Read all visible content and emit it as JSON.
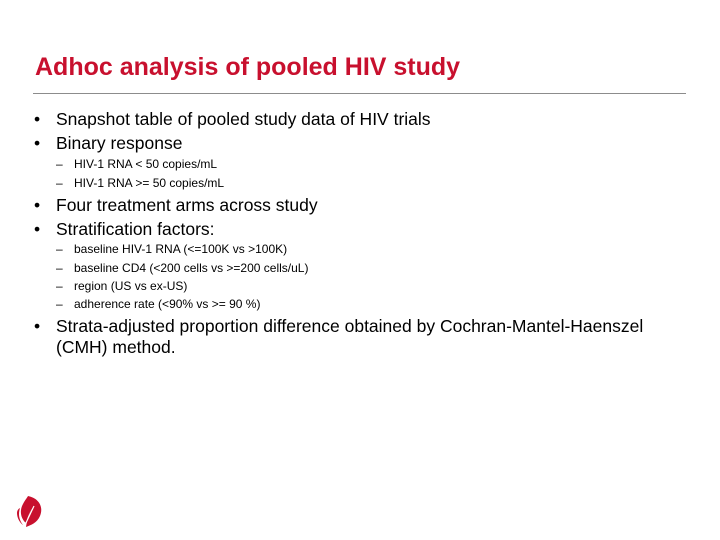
{
  "slide": {
    "title": "Adhoc analysis of pooled HIV study",
    "accent_color": "#c8102e",
    "rule_color": "#8c8c8c",
    "bullets": [
      "Snapshot table of pooled study data of HIV trials",
      "Binary response",
      "Four treatment arms across study",
      "Stratification factors:",
      "Strata-adjusted proportion difference obtained by Cochran-Mantel-Haenszel (CMH) method."
    ],
    "binary_response_subitems": [
      "HIV-1 RNA < 50 copies/mL",
      "HIV-1 RNA >= 50 copies/mL"
    ],
    "stratification_subitems": [
      "baseline HIV-1 RNA (<=100K vs >100K)",
      "baseline CD4 (<200 cells vs >=200 cells/uL)",
      "region (US vs ex-US)",
      "adherence rate (<90% vs >= 90 %)"
    ],
    "logo_icon": "red-leaf-logo-icon"
  }
}
